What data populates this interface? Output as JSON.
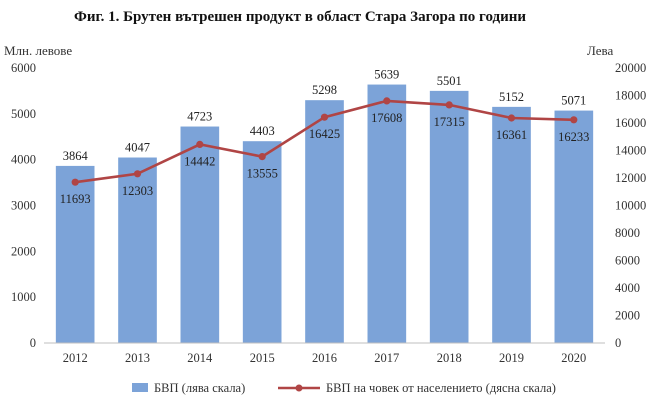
{
  "chart_data": {
    "type": "bar",
    "title": "Фиг. 1. Брутен вътрешен продукт в област Стара Загора по години",
    "y_left_label": "Млн. левове",
    "y_right_label": "Лева",
    "categories": [
      "2012",
      "2013",
      "2014",
      "2015",
      "2016",
      "2017",
      "2018",
      "2019",
      "2020"
    ],
    "y_left_ticks": [
      "0",
      "1000",
      "2000",
      "3000",
      "4000",
      "5000",
      "6000"
    ],
    "y_right_ticks": [
      "0",
      "2000",
      "4000",
      "6000",
      "8000",
      "10000",
      "12000",
      "14000",
      "16000",
      "18000",
      "20000"
    ],
    "ylim_left": [
      0,
      6000
    ],
    "ylim_right": [
      0,
      20000
    ],
    "grid": false,
    "legend_position": "bottom",
    "series": [
      {
        "name": "БВП (лява скала)",
        "type": "bar",
        "axis": "left",
        "color": "#7ca3d8",
        "values": [
          3864,
          4047,
          4723,
          4403,
          5298,
          5639,
          5501,
          5152,
          5071
        ],
        "labels": [
          "3864",
          "4047",
          "4723",
          "4403",
          "5298",
          "5639",
          "5501",
          "5152",
          "5071"
        ]
      },
      {
        "name": "БВП на човек от населението (дясна скала)",
        "type": "line",
        "axis": "right",
        "color": "#b04545",
        "values": [
          11693,
          12303,
          14442,
          13555,
          16425,
          17608,
          17315,
          16361,
          16233
        ],
        "labels": [
          "11693",
          "12303",
          "14442",
          "13555",
          "16425",
          "17608",
          "17315",
          "16361",
          "16233"
        ]
      }
    ]
  }
}
